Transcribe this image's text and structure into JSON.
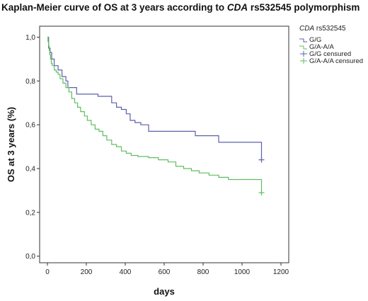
{
  "chart_data": {
    "type": "line",
    "title_parts": [
      "Kaplan-Meier curve of OS at 3 years according to ",
      "CDA",
      " rs532545 polymorphism"
    ],
    "xlabel": "days",
    "ylabel": "OS at 3 years (%)",
    "xlim": [
      -40,
      1240
    ],
    "ylim": [
      0,
      1.0
    ],
    "x_ticks": [
      "0",
      "200",
      "400",
      "600",
      "800",
      "1000",
      "1200"
    ],
    "y_ticks": [
      "0,0",
      "0,2",
      "0,4",
      "0,6",
      "0,8",
      "1,0"
    ],
    "legend_title": [
      "CDA",
      " rs532545"
    ],
    "legend_position": "right",
    "legend": [
      "G/G",
      "G/A-A/A",
      "G/G censured",
      "G/A-A/A censured"
    ],
    "series": [
      {
        "name": "G/G",
        "color": "#5b62a8",
        "steps": [
          [
            0,
            1.0
          ],
          [
            6,
            0.95
          ],
          [
            14,
            0.93
          ],
          [
            22,
            0.9
          ],
          [
            35,
            0.87
          ],
          [
            55,
            0.85
          ],
          [
            75,
            0.82
          ],
          [
            95,
            0.8
          ],
          [
            105,
            0.77
          ],
          [
            150,
            0.74
          ],
          [
            260,
            0.73
          ],
          [
            330,
            0.7
          ],
          [
            355,
            0.68
          ],
          [
            380,
            0.67
          ],
          [
            405,
            0.65
          ],
          [
            425,
            0.62
          ],
          [
            450,
            0.61
          ],
          [
            480,
            0.6
          ],
          [
            520,
            0.57
          ],
          [
            760,
            0.55
          ],
          [
            880,
            0.52
          ],
          [
            1100,
            0.44
          ]
        ],
        "censored": [
          [
            1100,
            0.44
          ]
        ]
      },
      {
        "name": "G/A-A/A",
        "color": "#5fbf5f",
        "steps": [
          [
            0,
            1.0
          ],
          [
            3,
            0.98
          ],
          [
            6,
            0.96
          ],
          [
            9,
            0.94
          ],
          [
            12,
            0.92
          ],
          [
            16,
            0.9
          ],
          [
            20,
            0.88
          ],
          [
            25,
            0.87
          ],
          [
            35,
            0.85
          ],
          [
            45,
            0.84
          ],
          [
            55,
            0.83
          ],
          [
            65,
            0.81
          ],
          [
            80,
            0.79
          ],
          [
            95,
            0.77
          ],
          [
            110,
            0.75
          ],
          [
            125,
            0.72
          ],
          [
            140,
            0.7
          ],
          [
            155,
            0.68
          ],
          [
            170,
            0.66
          ],
          [
            190,
            0.64
          ],
          [
            205,
            0.62
          ],
          [
            225,
            0.6
          ],
          [
            245,
            0.58
          ],
          [
            265,
            0.57
          ],
          [
            285,
            0.55
          ],
          [
            305,
            0.53
          ],
          [
            330,
            0.51
          ],
          [
            355,
            0.5
          ],
          [
            380,
            0.48
          ],
          [
            405,
            0.47
          ],
          [
            430,
            0.46
          ],
          [
            465,
            0.455
          ],
          [
            520,
            0.45
          ],
          [
            570,
            0.44
          ],
          [
            620,
            0.43
          ],
          [
            660,
            0.41
          ],
          [
            700,
            0.4
          ],
          [
            740,
            0.39
          ],
          [
            780,
            0.38
          ],
          [
            830,
            0.37
          ],
          [
            880,
            0.36
          ],
          [
            930,
            0.35
          ],
          [
            1100,
            0.29
          ]
        ],
        "censored": [
          [
            1100,
            0.29
          ]
        ]
      }
    ]
  }
}
